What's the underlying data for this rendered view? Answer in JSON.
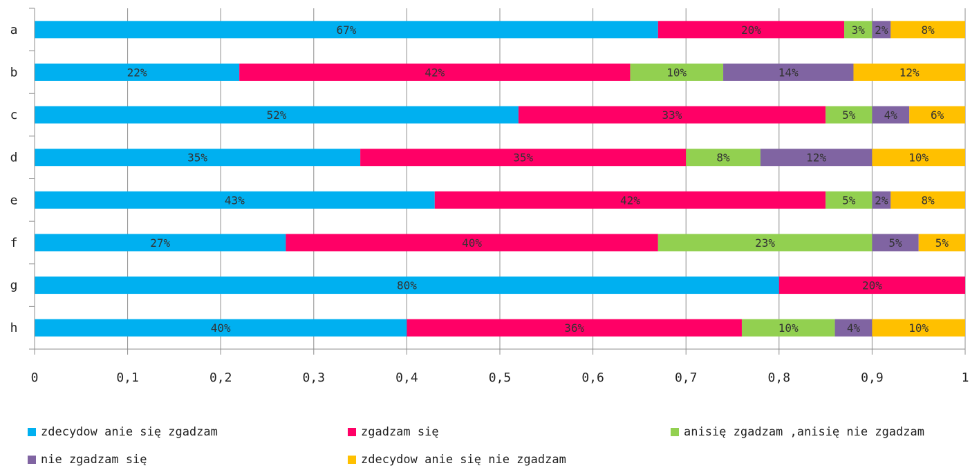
{
  "chart_data": {
    "type": "bar",
    "orientation": "horizontal",
    "stacked": true,
    "categories": [
      "a",
      "b",
      "c",
      "d",
      "e",
      "f",
      "g",
      "h"
    ],
    "series": [
      {
        "name": "zdecydow anie się zgadzam",
        "color": "#00B0F0",
        "values": [
          0.67,
          0.22,
          0.52,
          0.35,
          0.43,
          0.27,
          0.8,
          0.4
        ],
        "labels": [
          "67%",
          "22%",
          "52%",
          "35%",
          "43%",
          "27%",
          "80%",
          "40%"
        ]
      },
      {
        "name": "zgadzam się",
        "color": "#FF0066",
        "values": [
          0.2,
          0.42,
          0.33,
          0.35,
          0.42,
          0.4,
          0.2,
          0.36
        ],
        "labels": [
          "20%",
          "42%",
          "33%",
          "35%",
          "42%",
          "40%",
          "20%",
          "36%"
        ]
      },
      {
        "name": "anisię zgadzam ,anisię nie zgadzam",
        "color": "#92D050",
        "values": [
          0.03,
          0.1,
          0.05,
          0.08,
          0.05,
          0.23,
          0.0,
          0.1
        ],
        "labels": [
          "3%",
          "10%",
          "5%",
          "8%",
          "5%",
          "23%",
          "",
          "10%"
        ]
      },
      {
        "name": "nie zgadzam się",
        "color": "#8064A2",
        "values": [
          0.02,
          0.14,
          0.04,
          0.12,
          0.02,
          0.05,
          0.0,
          0.04
        ],
        "labels": [
          "2%",
          "14%",
          "4%",
          "12%",
          "2%",
          "5%",
          "",
          "4%"
        ]
      },
      {
        "name": "zdecydow anie się nie zgadzam",
        "color": "#FFC000",
        "values": [
          0.08,
          0.12,
          0.06,
          0.1,
          0.08,
          0.05,
          0.0,
          0.1
        ],
        "labels": [
          "8%",
          "12%",
          "6%",
          "10%",
          "8%",
          "5%",
          "",
          "10%"
        ]
      }
    ],
    "xlim": [
      0,
      1
    ],
    "xticks": [
      0,
      0.1,
      0.2,
      0.3,
      0.4,
      0.5,
      0.6,
      0.7,
      0.8,
      0.9,
      1
    ],
    "xtick_labels": [
      "0",
      "0,1",
      "0,2",
      "0,3",
      "0,4",
      "0,5",
      "0,6",
      "0,7",
      "0,8",
      "0,9",
      "1"
    ],
    "grid": true,
    "legend_position": "bottom"
  }
}
